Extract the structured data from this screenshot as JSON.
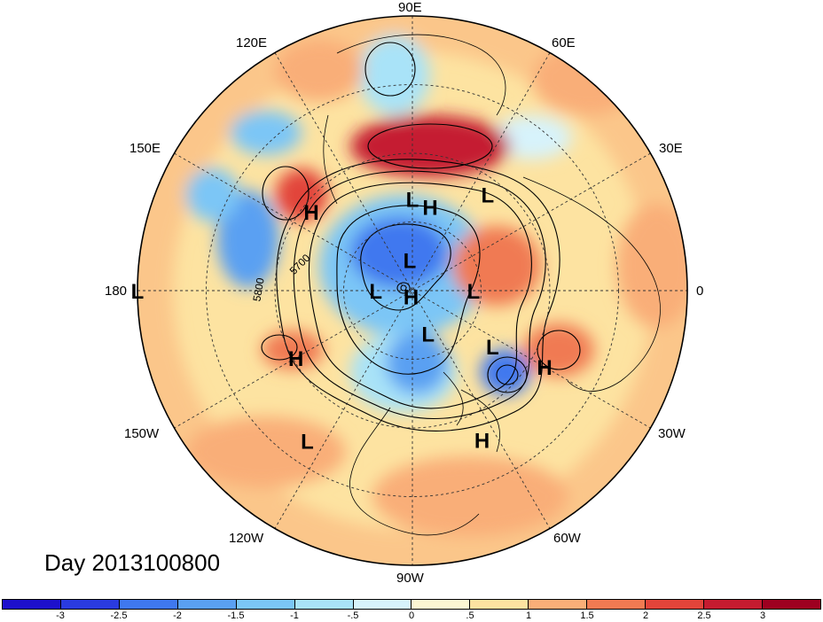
{
  "day_label": "Day 2013100800",
  "longitude_labels": [
    "90E",
    "60E",
    "30E",
    "0",
    "30W",
    "60W",
    "90W",
    "120W",
    "150W",
    "180",
    "150E",
    "120E"
  ],
  "contour_labels": [
    "5700",
    "5800"
  ],
  "pressure_centers": [
    {
      "letter": "L",
      "lon": 90,
      "lat": 60
    },
    {
      "letter": "L",
      "lon": 52,
      "lat": 50
    },
    {
      "letter": "H",
      "lon": 78,
      "lat": 62
    },
    {
      "letter": "H",
      "lon": 142,
      "lat": 48
    },
    {
      "letter": "L",
      "lon": 95,
      "lat": 80
    },
    {
      "letter": "L",
      "lon": 180,
      "lat": 78
    },
    {
      "letter": "L",
      "lon": 0,
      "lat": 70
    },
    {
      "letter": "L",
      "lon": 180,
      "lat": 0
    },
    {
      "letter": "H",
      "lon": 210,
      "lat": 46
    },
    {
      "letter": "H",
      "lon": 330,
      "lat": 40
    },
    {
      "letter": "H",
      "lon": 257,
      "lat": 88
    },
    {
      "letter": "L",
      "lon": 290,
      "lat": 75
    },
    {
      "letter": "L",
      "lon": 325,
      "lat": 58
    },
    {
      "letter": "L",
      "lon": 235,
      "lat": 30
    },
    {
      "letter": "H",
      "lon": 295,
      "lat": 36
    }
  ],
  "colorbar": {
    "tick_labels": [
      "-3",
      "-2.5",
      "-2",
      "-1.5",
      "-1",
      "-.5",
      "0",
      ".5",
      "1",
      "1.5",
      "2",
      "2.5",
      "3"
    ],
    "colors": [
      "#1d10cc",
      "#2a3be0",
      "#3f78ef",
      "#5aa0f2",
      "#7bc6f6",
      "#a9e3f8",
      "#d7f3fb",
      "#fbf6d3",
      "#fde3a1",
      "#f9ae78",
      "#f07a52",
      "#e2443a",
      "#c51b30",
      "#9e0020"
    ]
  }
}
